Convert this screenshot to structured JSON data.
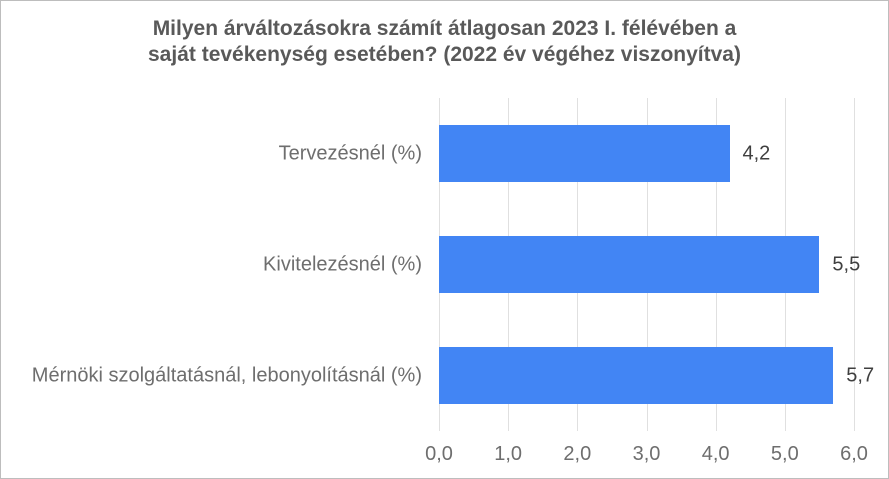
{
  "chart_data": {
    "type": "bar",
    "orientation": "horizontal",
    "title": "Milyen árváltozásokra számít átlagosan 2023 I. félévében a saját tevékenység esetében? (2022 év végéhez viszonyítva)",
    "title_lines": [
      "Milyen árváltozásokra számít átlagosan 2023 I. félévében a",
      "saját tevékenység esetében? (2022 év végéhez viszonyítva)"
    ],
    "categories": [
      "Tervezésnél (%)",
      "Kivitelezésnél (%)",
      "Mérnöki szolgáltatásnál, lebonyolításnál (%)"
    ],
    "values": [
      4.2,
      5.5,
      5.7
    ],
    "value_labels": [
      "4,2",
      "5,5",
      "5,7"
    ],
    "x_ticks": [
      "0,0",
      "1,0",
      "2,0",
      "3,0",
      "4,0",
      "5,0",
      "6,0"
    ],
    "x_tick_values": [
      0,
      1,
      2,
      3,
      4,
      5,
      6
    ],
    "xlim": [
      0,
      6
    ],
    "ylabel": "",
    "xlabel": "",
    "legend": "none",
    "grid": "vertical",
    "colors": {
      "bar": "#4285f4",
      "gridline": "#e0e0e0",
      "title_text": "#595959",
      "axis_text": "#6e6e6e",
      "value_text": "#3f3f3f",
      "frame_border": "#bdbdbd",
      "background": "#ffffff"
    }
  }
}
